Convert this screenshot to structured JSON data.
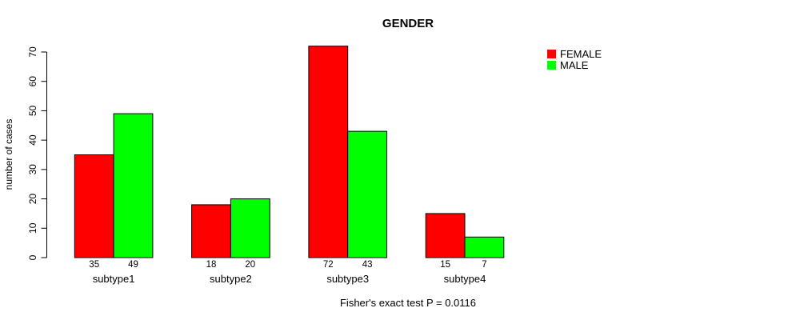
{
  "title": "GENDER",
  "chart_data": {
    "type": "bar",
    "categories": [
      "subtype1",
      "subtype2",
      "subtype3",
      "subtype4"
    ],
    "series": [
      {
        "name": "FEMALE",
        "color": "#FF0000",
        "values": [
          35,
          18,
          72,
          15
        ]
      },
      {
        "name": "MALE",
        "color": "#00FF00",
        "values": [
          49,
          20,
          43,
          7
        ]
      }
    ],
    "title": "GENDER",
    "xlabel": "",
    "ylabel": "number of cases",
    "yticks": [
      0,
      10,
      20,
      30,
      40,
      50,
      60,
      70
    ],
    "ylim": [
      0,
      70
    ],
    "bar_value_labels": [
      [
        "35",
        "49"
      ],
      [
        "18",
        "20"
      ],
      [
        "72",
        "43"
      ],
      [
        "15",
        "7"
      ]
    ],
    "grid": false,
    "legend_position": "top-right-outside",
    "bar_border_color": "#000000",
    "axis_color": "#000000"
  },
  "footer": {
    "text": "Fisher's exact test P = 0.0116"
  }
}
